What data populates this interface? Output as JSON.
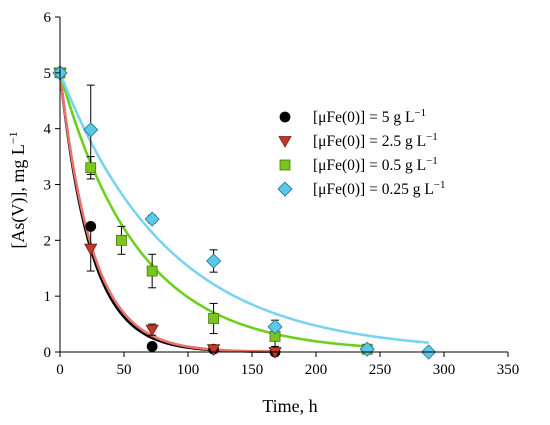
{
  "chart_data": {
    "type": "scatter",
    "xlabel": "Time, h",
    "ylabel_main": "[As(V)], mg L",
    "ylabel_sup": "−1",
    "xlim": [
      0,
      350
    ],
    "ylim": [
      0,
      6
    ],
    "xticks": [
      0,
      50,
      100,
      150,
      200,
      250,
      300,
      350
    ],
    "yticks": [
      0,
      1,
      2,
      3,
      4,
      5,
      6
    ],
    "grid": false,
    "legend_position": "center-right",
    "series": [
      {
        "name_main": "[μFe(0)] = 5 g L",
        "name_sup": "−1",
        "marker": "circle",
        "color": "#000000",
        "curve_color": "#000000",
        "x": [
          0,
          24,
          72,
          120,
          168
        ],
        "y": [
          5.0,
          2.25,
          0.1,
          0.05,
          0.0
        ],
        "err": [
          0,
          0,
          0,
          0,
          0
        ],
        "fit": {
          "a": 5.0,
          "k": 0.0415,
          "x_end": 168
        }
      },
      {
        "name_main": "[μFe(0)] = 2.5 g L",
        "name_sup": "−1",
        "marker": "triangle-down",
        "color": "#c0392b",
        "curve_color": "#e8736b",
        "x": [
          0,
          24,
          72,
          120,
          168
        ],
        "y": [
          5.0,
          1.85,
          0.4,
          0.05,
          0.0
        ],
        "err": [
          0,
          0.4,
          0.1,
          0,
          0
        ],
        "fit": {
          "a": 5.0,
          "k": 0.0395,
          "x_end": 168
        }
      },
      {
        "name_main": "[μFe(0)] = 0.5 g L",
        "name_sup": "−1",
        "marker": "square",
        "color": "#7dc41f",
        "curve_color": "#6fcf1f",
        "x": [
          0,
          24,
          48,
          72,
          120,
          168,
          240
        ],
        "y": [
          5.0,
          3.3,
          2.0,
          1.45,
          0.6,
          0.28,
          0.05
        ],
        "err": [
          0,
          0.2,
          0.25,
          0.3,
          0.27,
          0.18,
          0
        ],
        "fit": {
          "a": 5.0,
          "k": 0.0163,
          "x_end": 240
        }
      },
      {
        "name_main": "[μFe(0)] = 0.25 g L",
        "name_sup": "−1",
        "marker": "diamond",
        "color": "#5bc8e8",
        "curve_color": "#7ad4f0",
        "x": [
          0,
          24,
          72,
          120,
          168,
          240,
          288
        ],
        "y": [
          5.0,
          3.98,
          2.38,
          1.63,
          0.45,
          0.05,
          0.0
        ],
        "err": [
          0,
          0.8,
          0.07,
          0.2,
          0.12,
          0,
          0
        ],
        "fit": {
          "a": 5.0,
          "k": 0.0118,
          "x_end": 288
        }
      }
    ]
  }
}
